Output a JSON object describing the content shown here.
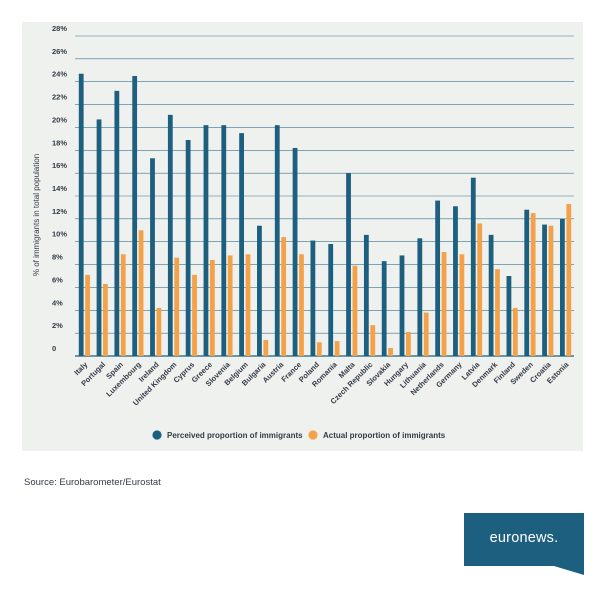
{
  "chart_data": {
    "type": "bar",
    "ylabel": "% of immigrants in total population",
    "xlabel": "",
    "ylim": [
      0,
      28
    ],
    "yticks": [
      0,
      2,
      4,
      6,
      8,
      10,
      12,
      14,
      16,
      18,
      20,
      22,
      24,
      26,
      28
    ],
    "ytick_labels": [
      "0",
      "2%",
      "4%",
      "6%",
      "8%",
      "10%",
      "12%",
      "14%",
      "16%",
      "18%",
      "20%",
      "22%",
      "24%",
      "26%",
      "28%"
    ],
    "grid": true,
    "legend_position": "bottom-center",
    "categories": [
      "Italy",
      "Portugal",
      "Spain",
      "Luxembourg",
      "Ireland",
      "United Kingdom",
      "Cyprus",
      "Greece",
      "Slovenia",
      "Belgium",
      "Bulgaria",
      "Austria",
      "France",
      "Poland",
      "Romania",
      "Malta",
      "Czech Republic",
      "Slovakia",
      "Hungary",
      "Lithuania",
      "Netherlands",
      "Germany",
      "Latvia",
      "Denmark",
      "Finland",
      "Sweden",
      "Croatia",
      "Estonia"
    ],
    "series": [
      {
        "name": "Perceived proportion of immigrants",
        "color": "#1d5f7e",
        "values": [
          24.7,
          20.7,
          23.2,
          24.5,
          17.3,
          21.1,
          18.9,
          20.2,
          20.2,
          19.5,
          11.4,
          20.2,
          18.2,
          10.1,
          9.8,
          16.0,
          10.6,
          8.3,
          8.8,
          10.3,
          13.6,
          13.1,
          15.6,
          10.6,
          7.0,
          12.8,
          11.5,
          12.0
        ]
      },
      {
        "name": "Actual proportion of immigrants",
        "color": "#f4a24a",
        "values": [
          7.1,
          6.3,
          8.9,
          11.0,
          4.2,
          8.6,
          7.1,
          8.4,
          8.8,
          8.9,
          1.4,
          10.4,
          8.9,
          1.2,
          1.3,
          7.9,
          2.7,
          0.7,
          2.1,
          3.8,
          9.1,
          8.9,
          11.6,
          7.6,
          4.2,
          12.5,
          11.4,
          13.3
        ]
      }
    ]
  },
  "source": "Source: Eurobarometer/Eurostat",
  "logo": {
    "text": "euronews.",
    "color": "#1d5f7e"
  },
  "colors": {
    "panel_background": "#eef1ee",
    "gridline": "#1d5f7e",
    "text": "#333b46"
  }
}
